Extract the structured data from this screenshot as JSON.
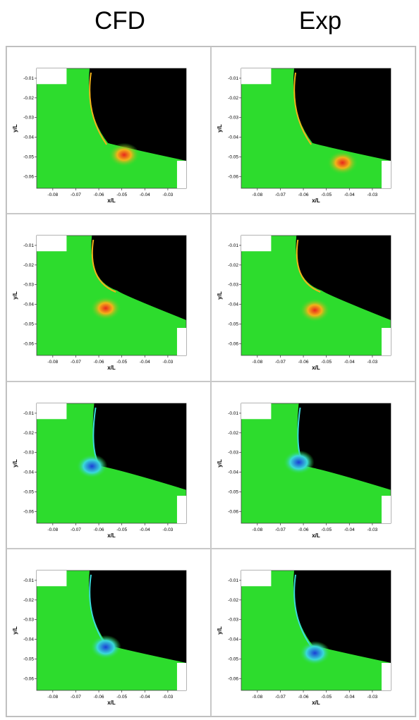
{
  "header": {
    "left": "CFD",
    "right": "Exp"
  },
  "axes": {
    "xlabel": "x/L",
    "ylabel": "y/L",
    "xticks": [
      "-0.08",
      "-0.07",
      "-0.06",
      "-0.05",
      "-0.04",
      "-0.03"
    ],
    "yticks": [
      "-0.01",
      "-0.02",
      "-0.03",
      "-0.04",
      "-0.05",
      "-0.06"
    ]
  },
  "panels": [
    {
      "row": 1,
      "col": "CFD",
      "body": "upper",
      "vortex": {
        "x": -0.049,
        "y": -0.049,
        "color": "red"
      }
    },
    {
      "row": 1,
      "col": "Exp",
      "body": "upper",
      "vortex": {
        "x": -0.043,
        "y": -0.053,
        "color": "red"
      }
    },
    {
      "row": 2,
      "col": "CFD",
      "body": "middle",
      "vortex": {
        "x": -0.057,
        "y": -0.042,
        "color": "red"
      }
    },
    {
      "row": 2,
      "col": "Exp",
      "body": "middle",
      "vortex": {
        "x": -0.055,
        "y": -0.043,
        "color": "red"
      }
    },
    {
      "row": 3,
      "col": "CFD",
      "body": "lower",
      "vortex": {
        "x": -0.063,
        "y": -0.037,
        "color": "blue"
      }
    },
    {
      "row": 3,
      "col": "Exp",
      "body": "lower",
      "vortex": {
        "x": -0.062,
        "y": -0.035,
        "color": "blue"
      }
    },
    {
      "row": 4,
      "col": "CFD",
      "body": "upper",
      "vortex": {
        "x": -0.057,
        "y": -0.044,
        "color": "blue"
      }
    },
    {
      "row": 4,
      "col": "Exp",
      "body": "upper",
      "vortex": {
        "x": -0.055,
        "y": -0.047,
        "color": "blue"
      }
    }
  ],
  "colors": {
    "field": "#2ddc2d",
    "body": "#000000",
    "red": "#e8281c",
    "blue": "#1a3fd6",
    "orange": "#f2b21a",
    "cyan": "#3ad9d9"
  }
}
